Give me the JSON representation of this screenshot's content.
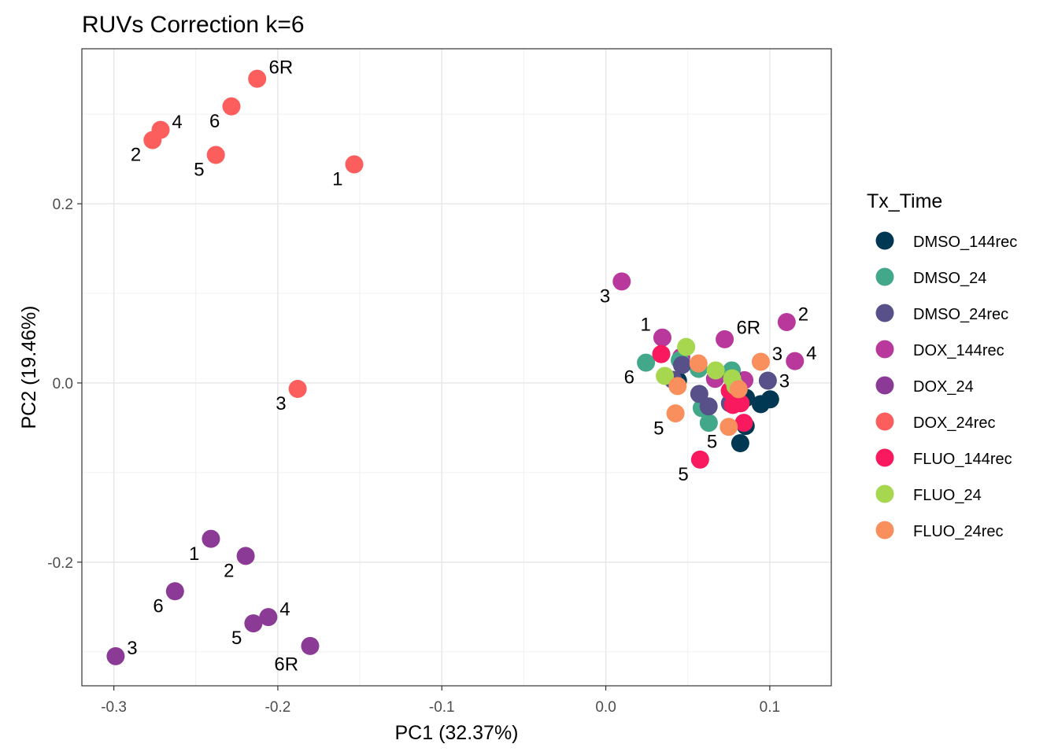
{
  "chart_data": {
    "type": "scatter",
    "title": "RUVs Correction k=6",
    "xlabel": "PC1 (32.37%)",
    "ylabel": "PC2 (19.46%)",
    "xlim": [
      -0.3195,
      0.1375
    ],
    "ylim": [
      -0.338,
      0.373
    ],
    "x_ticks": [
      -0.3,
      -0.2,
      -0.1,
      0.0,
      0.1
    ],
    "x_tick_labels": [
      "-0.3",
      "-0.2",
      "-0.1",
      "0.0",
      "0.1"
    ],
    "y_ticks": [
      -0.2,
      0.0,
      0.2
    ],
    "y_tick_labels": [
      "-0.2",
      "0.0",
      "0.2"
    ],
    "grid": true,
    "legend": {
      "title": "Tx_Time",
      "position": "right",
      "entries": [
        {
          "label": "DMSO_144rec",
          "color": "#003853"
        },
        {
          "label": "DMSO_24",
          "color": "#43a88a"
        },
        {
          "label": "DMSO_24rec",
          "color": "#575089"
        },
        {
          "label": "DOX_144rec",
          "color": "#b8399b"
        },
        {
          "label": "DOX_24",
          "color": "#8b3a96"
        },
        {
          "label": "DOX_24rec",
          "color": "#fc5e5e"
        },
        {
          "label": "FLUO_144rec",
          "color": "#f8195e"
        },
        {
          "label": "FLUO_24",
          "color": "#a6d74f"
        },
        {
          "label": "FLUO_24rec",
          "color": "#f98f5c"
        }
      ]
    },
    "series": [
      {
        "name": "DOX_24rec",
        "color": "#fc5e5e",
        "points": [
          {
            "x": -0.2126,
            "y": 0.3395,
            "label": "6R",
            "ldx": 0.0145,
            "ldy": 0.0115
          },
          {
            "x": -0.2283,
            "y": 0.3087,
            "label": "6",
            "ldx": -0.0102,
            "ldy": -0.0178
          },
          {
            "x": -0.2715,
            "y": 0.2825,
            "label": "4",
            "ldx": 0.0101,
            "ldy": 0.0075
          },
          {
            "x": -0.2764,
            "y": 0.2711,
            "label": "2",
            "ldx": -0.0102,
            "ldy": -0.0178
          },
          {
            "x": -0.2378,
            "y": 0.2545,
            "label": "5",
            "ldx": -0.0102,
            "ldy": -0.0178
          },
          {
            "x": -0.1534,
            "y": 0.244,
            "label": "1",
            "ldx": -0.0102,
            "ldy": -0.0178
          },
          {
            "x": -0.1879,
            "y": -0.0066,
            "label": "3",
            "ldx": -0.0102,
            "ldy": -0.0178
          }
        ]
      },
      {
        "name": "DOX_144rec",
        "color": "#b8399b",
        "points": [
          {
            "x": 0.0097,
            "y": 0.1133,
            "label": "3",
            "ldx": -0.0102,
            "ldy": -0.0178
          },
          {
            "x": 0.1103,
            "y": 0.068,
            "label": "2",
            "ldx": 0.0101,
            "ldy": 0.0075
          },
          {
            "x": 0.1153,
            "y": 0.0244,
            "label": "4",
            "ldx": 0.0101,
            "ldy": 0.0075
          },
          {
            "x": 0.0725,
            "y": 0.0488,
            "label": "6R",
            "ldx": 0.0145,
            "ldy": 0.0115
          },
          {
            "x": 0.0345,
            "y": 0.0506,
            "label": "1",
            "ldx": -0.0102,
            "ldy": 0.0135
          },
          {
            "x": 0.0666,
            "y": 0.0046,
            "label": "",
            "ldx": 0,
            "ldy": 0
          },
          {
            "x": 0.0845,
            "y": 0.0031,
            "label": "",
            "ldx": 0,
            "ldy": 0
          },
          {
            "x": 0.046,
            "y": 0.029,
            "label": "",
            "ldx": 0,
            "ldy": 0
          }
        ]
      },
      {
        "name": "DOX_24",
        "color": "#8b3a96",
        "points": [
          {
            "x": -0.2408,
            "y": -0.174,
            "label": "1",
            "ldx": -0.0102,
            "ldy": -0.0178
          },
          {
            "x": -0.2196,
            "y": -0.1931,
            "label": "2",
            "ldx": -0.0102,
            "ldy": -0.0178
          },
          {
            "x": -0.2627,
            "y": -0.2325,
            "label": "6",
            "ldx": -0.0102,
            "ldy": -0.0178
          },
          {
            "x": -0.2058,
            "y": -0.2613,
            "label": "4",
            "ldx": 0.0101,
            "ldy": 0.0075
          },
          {
            "x": -0.2149,
            "y": -0.2683,
            "label": "5",
            "ldx": -0.0102,
            "ldy": -0.0178
          },
          {
            "x": -0.1803,
            "y": -0.2936,
            "label": "6R",
            "ldx": -0.0145,
            "ldy": -0.0218
          },
          {
            "x": -0.2989,
            "y": -0.305,
            "label": "3",
            "ldx": 0.0101,
            "ldy": 0.0075
          }
        ]
      },
      {
        "name": "DMSO_144rec",
        "color": "#003853",
        "points": [
          {
            "x": 0.1002,
            "y": -0.0183,
            "label": "",
            "ldx": 0,
            "ldy": 0
          },
          {
            "x": 0.0945,
            "y": -0.0236,
            "label": "",
            "ldx": 0,
            "ldy": 0
          },
          {
            "x": 0.0853,
            "y": -0.048,
            "label": "",
            "ldx": 0,
            "ldy": 0
          },
          {
            "x": 0.082,
            "y": -0.0672,
            "label": "",
            "ldx": 0,
            "ldy": 0
          },
          {
            "x": 0.0855,
            "y": -0.0166,
            "label": "",
            "ldx": 0,
            "ldy": 0
          },
          {
            "x": 0.0768,
            "y": 0.0087,
            "label": "",
            "ldx": 0,
            "ldy": 0
          },
          {
            "x": 0.044,
            "y": 0.0026,
            "label": "",
            "ldx": 0,
            "ldy": 0
          }
        ]
      },
      {
        "name": "DMSO_24",
        "color": "#43a88a",
        "points": [
          {
            "x": 0.0245,
            "y": 0.0227,
            "label": "6",
            "ldx": -0.0102,
            "ldy": -0.0178
          },
          {
            "x": 0.0451,
            "y": 0.0253,
            "label": "",
            "ldx": 0,
            "ldy": 0
          },
          {
            "x": 0.0566,
            "y": 0.0157,
            "label": "",
            "ldx": 0,
            "ldy": 0
          },
          {
            "x": 0.0768,
            "y": 0.014,
            "label": "",
            "ldx": 0,
            "ldy": 0
          },
          {
            "x": 0.0585,
            "y": -0.028,
            "label": "",
            "ldx": 0,
            "ldy": 0
          },
          {
            "x": 0.0628,
            "y": -0.0445,
            "label": "",
            "ldx": 0,
            "ldy": 0
          }
        ]
      },
      {
        "name": "DMSO_24rec",
        "color": "#575089",
        "points": [
          {
            "x": 0.0988,
            "y": 0.0026,
            "label": "3",
            "ldx": 0.0101,
            "ldy": -0.002
          },
          {
            "x": 0.057,
            "y": -0.0122,
            "label": "",
            "ldx": 0,
            "ldy": 0
          },
          {
            "x": 0.0627,
            "y": -0.0262,
            "label": "",
            "ldx": 0,
            "ldy": 0
          },
          {
            "x": 0.041,
            "y": 0.0035,
            "label": "",
            "ldx": 0,
            "ldy": 0
          },
          {
            "x": 0.0757,
            "y": -0.0227,
            "label": "",
            "ldx": 0,
            "ldy": 0
          },
          {
            "x": 0.0465,
            "y": 0.02,
            "label": "",
            "ldx": 0,
            "ldy": 0
          }
        ]
      },
      {
        "name": "FLUO_144rec",
        "color": "#f8195e",
        "points": [
          {
            "x": 0.0575,
            "y": -0.0855,
            "label": "5",
            "ldx": -0.0102,
            "ldy": -0.0178
          },
          {
            "x": 0.0338,
            "y": 0.0322,
            "label": "",
            "ldx": 0,
            "ldy": 0
          },
          {
            "x": 0.0756,
            "y": -0.0087,
            "label": "",
            "ldx": 0,
            "ldy": 0
          },
          {
            "x": 0.0822,
            "y": -0.0227,
            "label": "",
            "ldx": 0,
            "ldy": 0
          },
          {
            "x": 0.0775,
            "y": -0.0245,
            "label": "",
            "ldx": 0,
            "ldy": 0
          },
          {
            "x": 0.0842,
            "y": -0.0445,
            "label": "",
            "ldx": 0,
            "ldy": 0
          }
        ]
      },
      {
        "name": "FLUO_24",
        "color": "#a6d74f",
        "points": [
          {
            "x": 0.049,
            "y": 0.0402,
            "label": "",
            "ldx": 0,
            "ldy": 0
          },
          {
            "x": 0.036,
            "y": 0.0078,
            "label": "",
            "ldx": 0,
            "ldy": 0
          },
          {
            "x": 0.067,
            "y": 0.014,
            "label": "",
            "ldx": 0,
            "ldy": 0
          },
          {
            "x": 0.077,
            "y": 0.0052,
            "label": "",
            "ldx": 0,
            "ldy": 0
          },
          {
            "x": 0.079,
            "y": -0.0035,
            "label": "",
            "ldx": 0,
            "ldy": 0
          }
        ]
      },
      {
        "name": "FLUO_24rec",
        "color": "#f98f5c",
        "points": [
          {
            "x": 0.0945,
            "y": 0.0236,
            "label": "3",
            "ldx": 0.0101,
            "ldy": 0.0075
          },
          {
            "x": 0.0565,
            "y": 0.0218,
            "label": "",
            "ldx": 0,
            "ldy": 0
          },
          {
            "x": 0.0425,
            "y": -0.034,
            "label": "5",
            "ldx": -0.0102,
            "ldy": -0.0178
          },
          {
            "x": 0.075,
            "y": -0.049,
            "label": "5",
            "ldx": -0.0102,
            "ldy": -0.0178
          },
          {
            "x": 0.0438,
            "y": -0.0035,
            "label": "",
            "ldx": 0,
            "ldy": 0
          },
          {
            "x": 0.081,
            "y": -0.007,
            "label": "",
            "ldx": 0,
            "ldy": 0
          }
        ]
      }
    ]
  }
}
